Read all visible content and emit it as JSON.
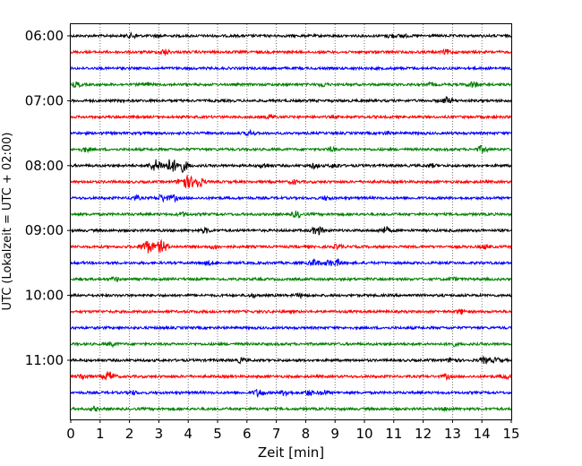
{
  "chart_data": {
    "type": "line",
    "title": "",
    "xlabel": "Zeit  [min]",
    "ylabel": "UTC (Lokalzeit = UTC + 02:00)",
    "xlim": [
      0,
      15
    ],
    "x_ticks": [
      "0",
      "1",
      "2",
      "3",
      "4",
      "5",
      "6",
      "7",
      "8",
      "9",
      "10",
      "11",
      "12",
      "13",
      "14",
      "15"
    ],
    "y_ticks": [
      "06:00",
      "07:00",
      "08:00",
      "09:00",
      "10:00",
      "11:00"
    ],
    "grid": "vertical dotted",
    "trace_interval_minutes": 15,
    "traces": [
      {
        "start": "06:00",
        "color": "#000000",
        "events": [
          [
            2.1,
            0.6
          ],
          [
            3.0,
            0.4
          ],
          [
            10.9,
            0.5
          ],
          [
            11.3,
            0.4
          ]
        ]
      },
      {
        "start": "06:15",
        "color": "#ff0000",
        "events": [
          [
            3.2,
            0.7
          ],
          [
            12.8,
            0.6
          ]
        ]
      },
      {
        "start": "06:30",
        "color": "#0000ff",
        "events": []
      },
      {
        "start": "06:45",
        "color": "#008000",
        "events": [
          [
            0.2,
            0.6
          ],
          [
            2.6,
            0.5
          ],
          [
            8.6,
            0.5
          ],
          [
            12.3,
            0.4
          ],
          [
            13.7,
            0.8
          ]
        ]
      },
      {
        "start": "07:00",
        "color": "#000000",
        "events": [
          [
            12.8,
            0.8
          ]
        ]
      },
      {
        "start": "07:15",
        "color": "#ff0000",
        "events": [
          [
            6.8,
            0.6
          ]
        ]
      },
      {
        "start": "07:30",
        "color": "#0000ff",
        "events": [
          [
            6.1,
            0.6
          ],
          [
            10.8,
            0.4
          ]
        ]
      },
      {
        "start": "07:45",
        "color": "#008000",
        "events": [
          [
            0.5,
            0.6
          ],
          [
            8.9,
            0.5
          ],
          [
            14.0,
            0.9
          ]
        ]
      },
      {
        "start": "08:00",
        "color": "#000000",
        "events": [
          [
            2.9,
            1.6
          ],
          [
            3.4,
            1.8
          ],
          [
            3.8,
            1.6
          ],
          [
            6.6,
            0.6
          ],
          [
            8.3,
            0.6
          ],
          [
            9.0,
            0.6
          ],
          [
            12.3,
            0.4
          ]
        ]
      },
      {
        "start": "08:15",
        "color": "#ff0000",
        "events": [
          [
            3.9,
            1.8
          ],
          [
            4.3,
            1.6
          ],
          [
            7.6,
            0.5
          ]
        ]
      },
      {
        "start": "08:30",
        "color": "#0000ff",
        "events": [
          [
            2.2,
            0.6
          ],
          [
            3.1,
            0.9
          ],
          [
            3.5,
            0.8
          ],
          [
            8.7,
            0.5
          ]
        ]
      },
      {
        "start": "08:45",
        "color": "#008000",
        "events": [
          [
            3.8,
            0.5
          ],
          [
            7.7,
            0.8
          ]
        ]
      },
      {
        "start": "09:00",
        "color": "#000000",
        "events": [
          [
            4.6,
            0.6
          ],
          [
            8.4,
            1.2
          ],
          [
            10.7,
            0.9
          ]
        ]
      },
      {
        "start": "09:15",
        "color": "#ff0000",
        "events": [
          [
            2.6,
            1.8
          ],
          [
            3.1,
            1.6
          ],
          [
            4.9,
            0.5
          ],
          [
            9.1,
            0.6
          ],
          [
            14.1,
            0.5
          ]
        ]
      },
      {
        "start": "09:30",
        "color": "#0000ff",
        "events": [
          [
            4.7,
            0.5
          ],
          [
            8.3,
            0.9
          ],
          [
            8.8,
            0.7
          ],
          [
            9.1,
            0.8
          ]
        ]
      },
      {
        "start": "09:45",
        "color": "#008000",
        "events": [
          [
            1.5,
            0.5
          ],
          [
            13.0,
            0.4
          ]
        ]
      },
      {
        "start": "10:00",
        "color": "#000000",
        "events": [
          [
            6.2,
            0.4
          ],
          [
            7.8,
            0.4
          ]
        ]
      },
      {
        "start": "10:15",
        "color": "#ff0000",
        "events": [
          [
            13.3,
            0.6
          ]
        ]
      },
      {
        "start": "10:30",
        "color": "#0000ff",
        "events": []
      },
      {
        "start": "10:45",
        "color": "#008000",
        "events": [
          [
            1.4,
            0.5
          ],
          [
            13.0,
            0.5
          ]
        ]
      },
      {
        "start": "11:00",
        "color": "#000000",
        "events": [
          [
            5.8,
            0.6
          ],
          [
            13.0,
            0.7
          ],
          [
            14.1,
            0.8
          ],
          [
            14.5,
            0.6
          ]
        ]
      },
      {
        "start": "11:15",
        "color": "#ff0000",
        "events": [
          [
            0.4,
            0.7
          ],
          [
            1.3,
            1.3
          ],
          [
            12.8,
            0.6
          ],
          [
            14.8,
            0.6
          ]
        ]
      },
      {
        "start": "11:30",
        "color": "#0000ff",
        "events": [
          [
            2.1,
            0.5
          ],
          [
            6.4,
            1.0
          ],
          [
            7.3,
            0.8
          ],
          [
            8.1,
            0.7
          ],
          [
            8.6,
            0.6
          ]
        ]
      },
      {
        "start": "11:45",
        "color": "#008000",
        "events": [
          [
            0.8,
            0.5
          ],
          [
            12.8,
            0.4
          ]
        ]
      }
    ]
  }
}
